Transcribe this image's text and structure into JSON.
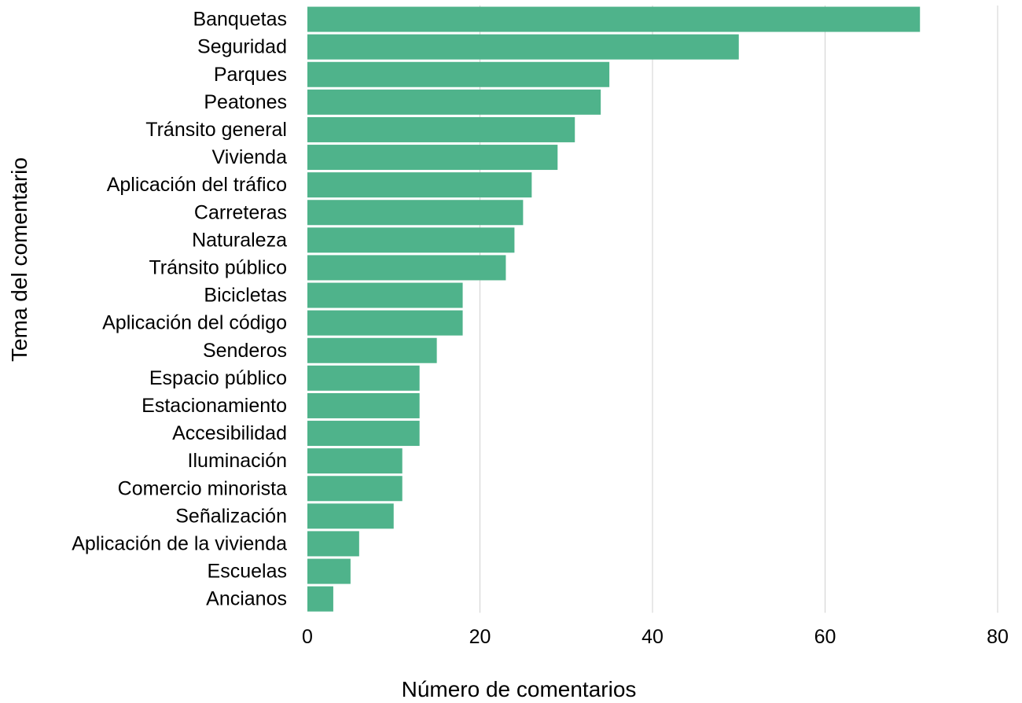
{
  "chart_data": {
    "type": "bar",
    "orientation": "horizontal",
    "xlabel": "Número de comentarios",
    "ylabel": "Tema del comentario",
    "xlim": [
      0,
      80
    ],
    "xticks": [
      0,
      20,
      40,
      60,
      80
    ],
    "grid": "vertical",
    "legend": "none",
    "bar_color": "#4fb38b",
    "grid_color": "#d0d0d0",
    "categories": [
      "Banquetas",
      "Seguridad",
      "Parques",
      "Peatones",
      "Tránsito general",
      "Vivienda",
      "Aplicación del tráfico",
      "Carreteras",
      "Naturaleza",
      "Tránsito público",
      "Bicicletas",
      "Aplicación del código",
      "Senderos",
      "Espacio público",
      "Estacionamiento",
      "Accesibilidad",
      "Iluminación",
      "Comercio minorista",
      "Señalización",
      "Aplicación de la vivienda",
      "Escuelas",
      "Ancianos"
    ],
    "values": [
      71,
      50,
      35,
      34,
      31,
      29,
      26,
      25,
      24,
      23,
      18,
      18,
      15,
      13,
      13,
      13,
      11,
      11,
      10,
      6,
      5,
      3
    ]
  }
}
